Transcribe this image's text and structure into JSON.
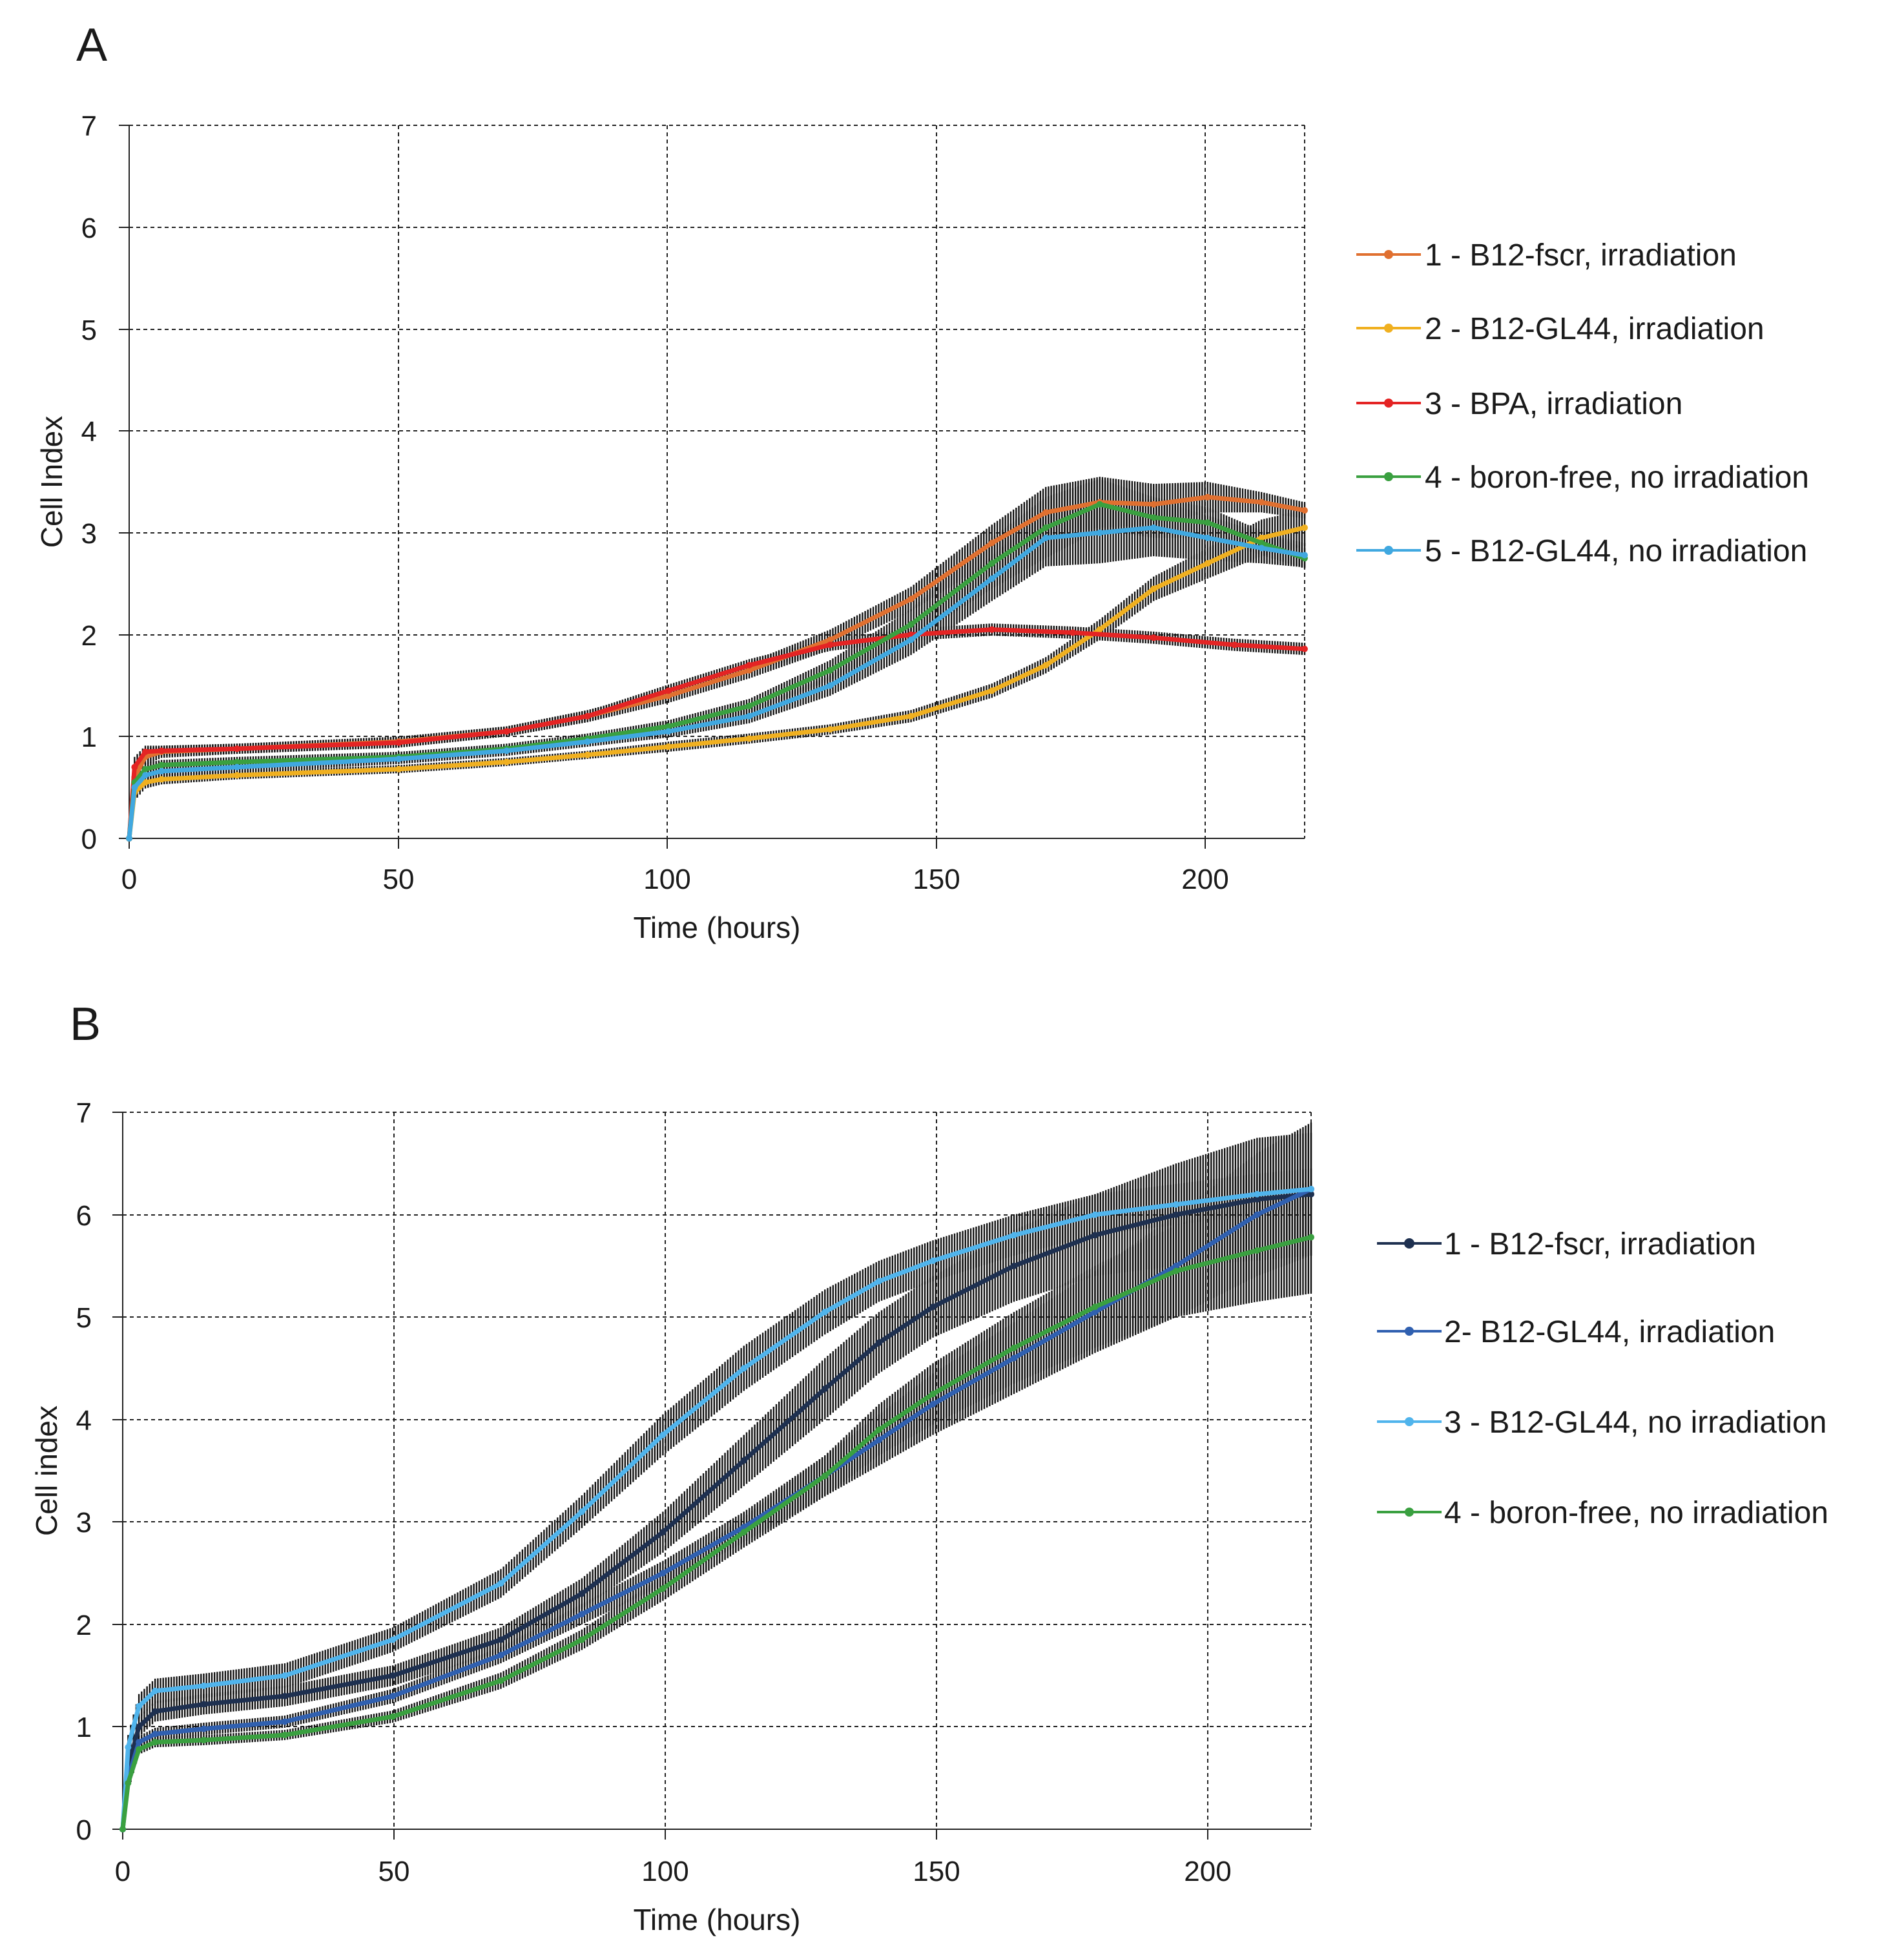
{
  "chart_data": [
    {
      "panel": "A",
      "type": "line",
      "xlabel": "Time (hours)",
      "ylabel": "Cell Index",
      "xlim": [
        0,
        218
      ],
      "ylim": [
        0,
        7
      ],
      "xticks": [
        0,
        50,
        100,
        150,
        200
      ],
      "yticks": [
        0,
        1,
        2,
        3,
        4,
        5,
        6,
        7
      ],
      "grid": true,
      "legend_position": "right",
      "series": [
        {
          "name": "1 - B12-fscr, irradiation",
          "color": "#e07030",
          "error_bars": true,
          "x": [
            0,
            1,
            3,
            6,
            20,
            50,
            70,
            85,
            100,
            115,
            130,
            145,
            160,
            170,
            180,
            190,
            200,
            210,
            218
          ],
          "values": [
            0,
            0.6,
            0.8,
            0.85,
            0.88,
            0.95,
            1.05,
            1.2,
            1.4,
            1.65,
            1.95,
            2.35,
            2.9,
            3.2,
            3.3,
            3.28,
            3.35,
            3.3,
            3.22
          ],
          "error": [
            0,
            0.1,
            0.08,
            0.06,
            0.05,
            0.05,
            0.05,
            0.06,
            0.07,
            0.08,
            0.1,
            0.12,
            0.18,
            0.25,
            0.25,
            0.2,
            0.15,
            0.1,
            0.08
          ]
        },
        {
          "name": "2 - B12-GL44, irradiation",
          "color": "#f0b020",
          "error_bars": true,
          "x": [
            0,
            1,
            3,
            6,
            20,
            50,
            70,
            85,
            100,
            115,
            130,
            145,
            160,
            170,
            180,
            190,
            200,
            210,
            218
          ],
          "values": [
            0,
            0.45,
            0.55,
            0.58,
            0.62,
            0.68,
            0.75,
            0.82,
            0.9,
            0.98,
            1.07,
            1.2,
            1.45,
            1.7,
            2.05,
            2.45,
            2.7,
            2.95,
            3.05
          ],
          "error": [
            0,
            0.08,
            0.06,
            0.05,
            0.04,
            0.04,
            0.04,
            0.04,
            0.05,
            0.05,
            0.05,
            0.06,
            0.07,
            0.08,
            0.1,
            0.12,
            0.15,
            0.18,
            0.18
          ]
        },
        {
          "name": "3 - BPA, irradiation",
          "color": "#e42424",
          "error_bars": true,
          "x": [
            0,
            1,
            3,
            6,
            20,
            50,
            70,
            85,
            100,
            115,
            130,
            145,
            160,
            175,
            190,
            205,
            218
          ],
          "values": [
            0,
            0.7,
            0.85,
            0.86,
            0.88,
            0.94,
            1.05,
            1.2,
            1.45,
            1.7,
            1.9,
            2.0,
            2.05,
            2.02,
            1.97,
            1.9,
            1.86
          ],
          "error": [
            0,
            0.1,
            0.06,
            0.05,
            0.05,
            0.05,
            0.05,
            0.05,
            0.06,
            0.06,
            0.06,
            0.06,
            0.06,
            0.06,
            0.06,
            0.06,
            0.06
          ]
        },
        {
          "name": "4 - boron-free, no irradiation",
          "color": "#3aa040",
          "error_bars": true,
          "x": [
            0,
            1,
            3,
            6,
            20,
            50,
            70,
            85,
            100,
            115,
            130,
            145,
            160,
            170,
            180,
            190,
            200,
            210,
            218
          ],
          "values": [
            0,
            0.55,
            0.68,
            0.72,
            0.75,
            0.8,
            0.88,
            0.98,
            1.1,
            1.3,
            1.65,
            2.1,
            2.7,
            3.05,
            3.28,
            3.15,
            3.1,
            2.9,
            2.75
          ],
          "error": [
            0,
            0.08,
            0.06,
            0.05,
            0.05,
            0.05,
            0.05,
            0.05,
            0.06,
            0.07,
            0.1,
            0.15,
            0.25,
            0.3,
            0.25,
            0.2,
            0.15,
            0.12,
            0.1
          ]
        },
        {
          "name": "5 - B12-GL44, no irradiation",
          "color": "#40a8e0",
          "error_bars": true,
          "x": [
            0,
            1,
            3,
            6,
            20,
            50,
            70,
            85,
            100,
            115,
            130,
            145,
            160,
            170,
            180,
            190,
            200,
            210,
            218
          ],
          "values": [
            0,
            0.5,
            0.62,
            0.66,
            0.7,
            0.78,
            0.86,
            0.95,
            1.05,
            1.2,
            1.5,
            1.95,
            2.55,
            2.95,
            3.0,
            3.05,
            2.95,
            2.85,
            2.78
          ],
          "error": [
            0,
            0.08,
            0.06,
            0.05,
            0.05,
            0.05,
            0.05,
            0.05,
            0.06,
            0.07,
            0.1,
            0.15,
            0.22,
            0.28,
            0.3,
            0.28,
            0.22,
            0.15,
            0.12
          ]
        }
      ]
    },
    {
      "panel": "B",
      "type": "line",
      "xlabel": "Time (hours)",
      "ylabel": "Cell index",
      "xlim": [
        0,
        220
      ],
      "ylim": [
        0,
        7
      ],
      "xticks": [
        0,
        50,
        100,
        150,
        200
      ],
      "yticks": [
        0,
        1,
        2,
        3,
        4,
        5,
        6,
        7
      ],
      "grid": true,
      "legend_position": "right",
      "series": [
        {
          "name": "1 - B12-fscr, irradiation",
          "color": "#1e3050",
          "error_bars": true,
          "x": [
            0,
            1,
            3,
            6,
            15,
            30,
            50,
            70,
            85,
            100,
            115,
            130,
            140,
            150,
            165,
            180,
            195,
            210,
            220
          ],
          "values": [
            0,
            0.6,
            1.0,
            1.15,
            1.22,
            1.3,
            1.5,
            1.85,
            2.3,
            2.9,
            3.6,
            4.3,
            4.75,
            5.1,
            5.5,
            5.8,
            6.0,
            6.15,
            6.2
          ],
          "error": [
            0,
            0.1,
            0.1,
            0.1,
            0.1,
            0.1,
            0.1,
            0.12,
            0.15,
            0.2,
            0.25,
            0.3,
            0.3,
            0.3,
            0.35,
            0.4,
            0.5,
            0.6,
            0.6
          ]
        },
        {
          "name": "2- B12-GL44, irradiation",
          "color": "#3060b0",
          "error_bars": true,
          "x": [
            0,
            1,
            3,
            6,
            15,
            30,
            50,
            70,
            85,
            100,
            115,
            130,
            140,
            150,
            165,
            180,
            195,
            210,
            220
          ],
          "values": [
            0,
            0.5,
            0.85,
            0.93,
            0.98,
            1.05,
            1.3,
            1.7,
            2.1,
            2.5,
            2.95,
            3.45,
            3.8,
            4.15,
            4.6,
            5.05,
            5.5,
            6.0,
            6.25
          ],
          "error": [
            0,
            0.08,
            0.06,
            0.06,
            0.06,
            0.06,
            0.07,
            0.08,
            0.1,
            0.12,
            0.15,
            0.2,
            0.25,
            0.3,
            0.35,
            0.4,
            0.5,
            0.6,
            0.65
          ]
        },
        {
          "name": "3 - B12-GL44, no irradiation",
          "color": "#50b4ec",
          "error_bars": true,
          "x": [
            0,
            1,
            3,
            6,
            15,
            30,
            50,
            70,
            85,
            100,
            115,
            130,
            140,
            150,
            165,
            180,
            195,
            210,
            220
          ],
          "values": [
            0,
            0.8,
            1.2,
            1.35,
            1.4,
            1.5,
            1.85,
            2.4,
            3.1,
            3.85,
            4.5,
            5.05,
            5.35,
            5.55,
            5.8,
            6.0,
            6.1,
            6.2,
            6.25
          ],
          "error": [
            0,
            0.12,
            0.12,
            0.12,
            0.12,
            0.12,
            0.12,
            0.14,
            0.16,
            0.2,
            0.22,
            0.22,
            0.2,
            0.2,
            0.2,
            0.2,
            0.2,
            0.2,
            0.2
          ]
        },
        {
          "name": "4 - boron-free, no irradiation",
          "color": "#3aa040",
          "error_bars": true,
          "x": [
            0,
            1,
            3,
            6,
            15,
            30,
            50,
            70,
            85,
            100,
            115,
            130,
            140,
            150,
            165,
            180,
            195,
            210,
            220
          ],
          "values": [
            0,
            0.45,
            0.78,
            0.85,
            0.87,
            0.92,
            1.1,
            1.45,
            1.85,
            2.35,
            2.9,
            3.45,
            3.9,
            4.25,
            4.7,
            5.1,
            5.45,
            5.65,
            5.78
          ],
          "error": [
            0,
            0.08,
            0.05,
            0.05,
            0.05,
            0.05,
            0.06,
            0.08,
            0.1,
            0.12,
            0.15,
            0.2,
            0.25,
            0.3,
            0.35,
            0.4,
            0.45,
            0.5,
            0.55
          ]
        }
      ]
    }
  ]
}
